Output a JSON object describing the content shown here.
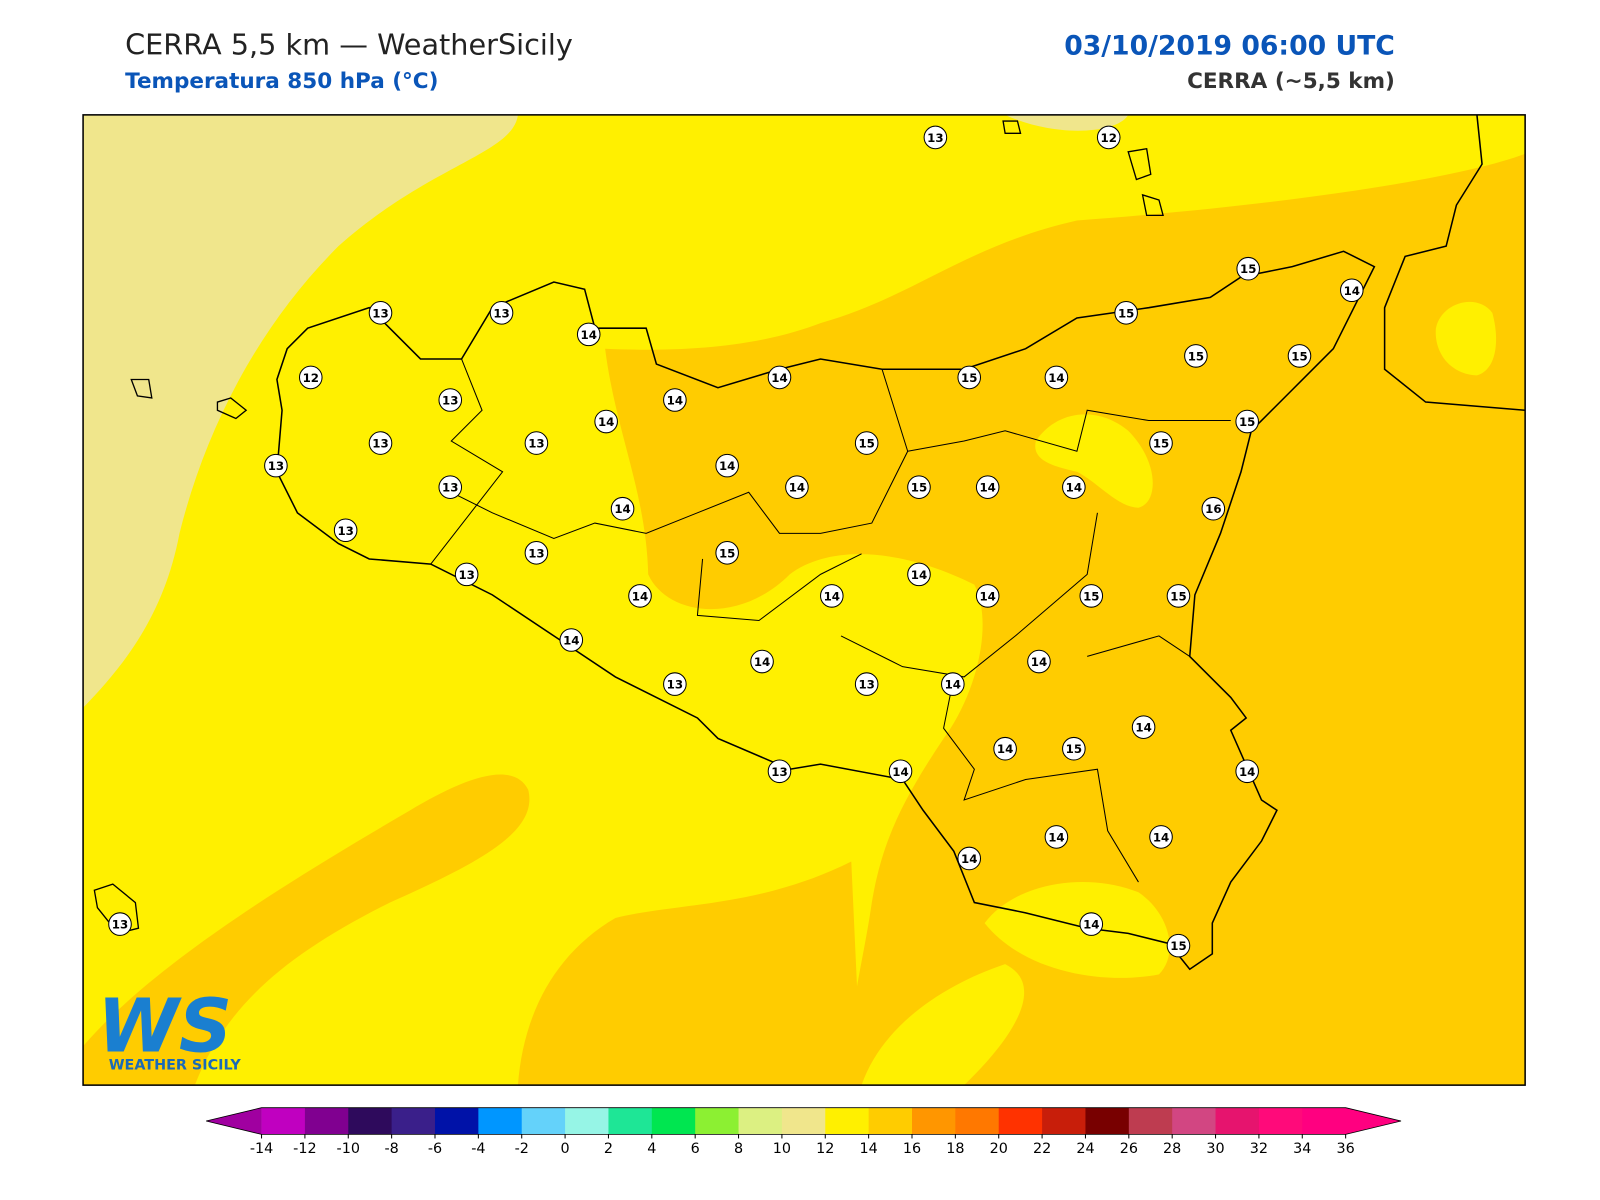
{
  "header": {
    "title": "CERRA 5,5 km — WeatherSicily",
    "subtitle": "Temperatura 850 hPa (°C)",
    "datetime": "03/10/2019 06:00 UTC",
    "model": "CERRA (~5,5 km)"
  },
  "logo": {
    "mark": "WS",
    "name": "WEATHER SICILY"
  },
  "stations": [
    13,
    12,
    15,
    14,
    13,
    13,
    14,
    15,
    15,
    15,
    12,
    13,
    14,
    14,
    15,
    14,
    14,
    15,
    13,
    13,
    15,
    15,
    13,
    14,
    13,
    14,
    15,
    14,
    14,
    14,
    16,
    13,
    13,
    15,
    13,
    14,
    14,
    14,
    14,
    15,
    15,
    14,
    14,
    14,
    13,
    13,
    14,
    14,
    14,
    15,
    13,
    14,
    14,
    14,
    14,
    14,
    14,
    15,
    13
  ],
  "colorbar": {
    "ticks": [
      -14,
      -12,
      -10,
      -8,
      -6,
      -4,
      -2,
      0,
      2,
      4,
      6,
      8,
      10,
      12,
      14,
      16,
      18,
      20,
      22,
      24,
      26,
      28,
      30,
      32,
      34,
      36
    ],
    "colors": [
      "#c000c0",
      "#800090",
      "#2e0a5c",
      "#3a1f8a",
      "#0012a8",
      "#0096ff",
      "#64d2fa",
      "#96f5e6",
      "#1ee696",
      "#00e650",
      "#8cf032",
      "#dcf082",
      "#f0e68c",
      "#fff000",
      "#ffcc00",
      "#ff9600",
      "#ff7800",
      "#ff3200",
      "#c81e0a",
      "#780000",
      "#be3c50",
      "#d24682",
      "#e6146e",
      "#ff0a7a",
      "#ff0080"
    ],
    "extend_colors": [
      "#a000a0",
      "#ff0080"
    ]
  }
}
